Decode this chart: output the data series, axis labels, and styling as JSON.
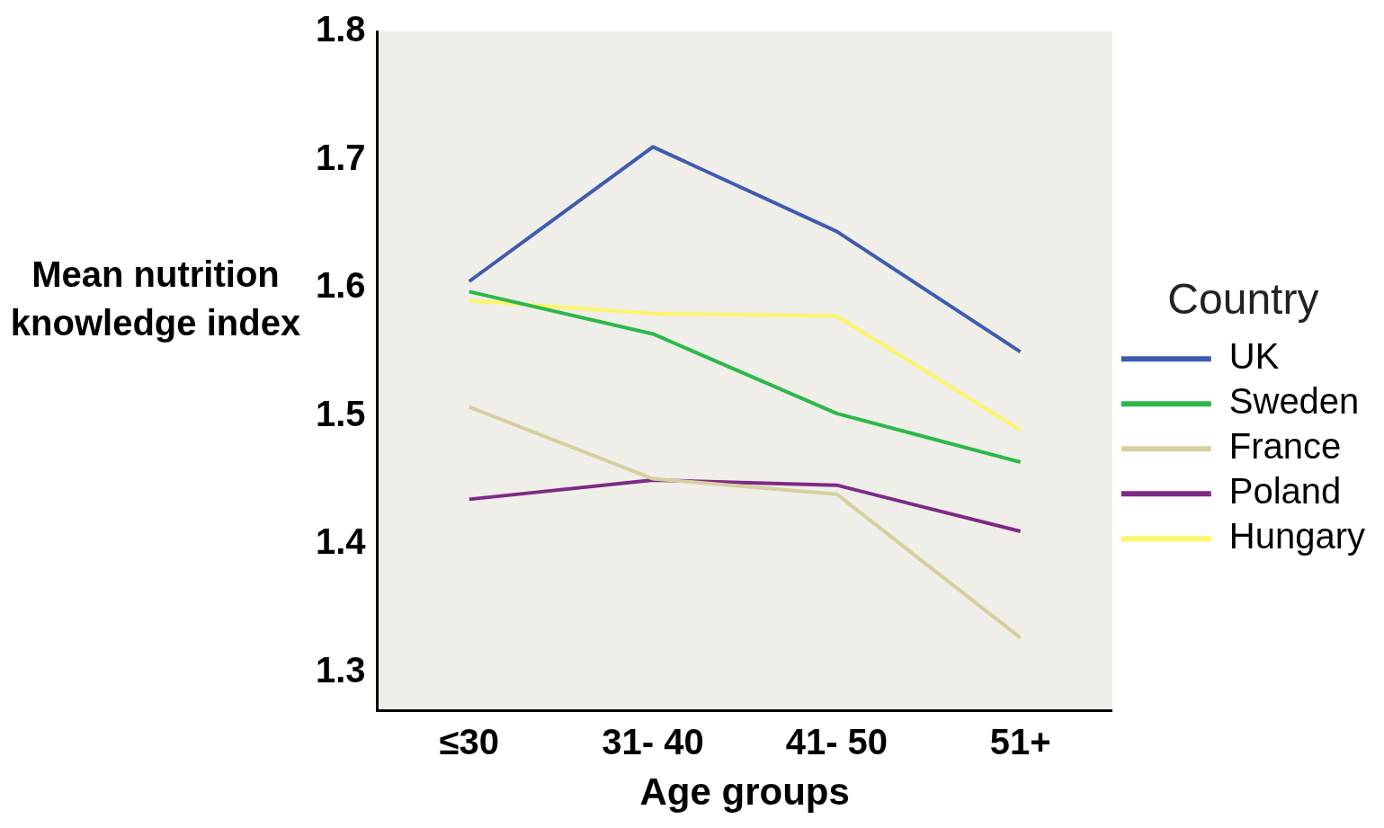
{
  "chart_data": {
    "type": "line",
    "xlabel": "Age groups",
    "ylabel": "Mean nutrition knowledge index",
    "legend_title": "Country",
    "categories": [
      "≤30",
      "31- 40",
      "41- 50",
      "51+"
    ],
    "ylim": [
      1.27,
      1.8
    ],
    "yticks": [
      1.3,
      1.4,
      1.5,
      1.6,
      1.7,
      1.8
    ],
    "grid": false,
    "legend": "right",
    "marker": "none",
    "line_style": "solid",
    "series": [
      {
        "name": "UK",
        "color": "#3f5bb0",
        "values": [
          1.605,
          1.71,
          1.644,
          1.55
        ]
      },
      {
        "name": "Sweden",
        "color": "#2db84a",
        "values": [
          1.597,
          1.564,
          1.502,
          1.464
        ]
      },
      {
        "name": "France",
        "color": "#d6cf9e",
        "values": [
          1.507,
          1.451,
          1.439,
          1.327
        ]
      },
      {
        "name": "Poland",
        "color": "#7d2a86",
        "values": [
          1.435,
          1.45,
          1.446,
          1.41
        ]
      },
      {
        "name": "Hungary",
        "color": "#fbf66a",
        "values": [
          1.59,
          1.58,
          1.578,
          1.489
        ]
      }
    ]
  }
}
